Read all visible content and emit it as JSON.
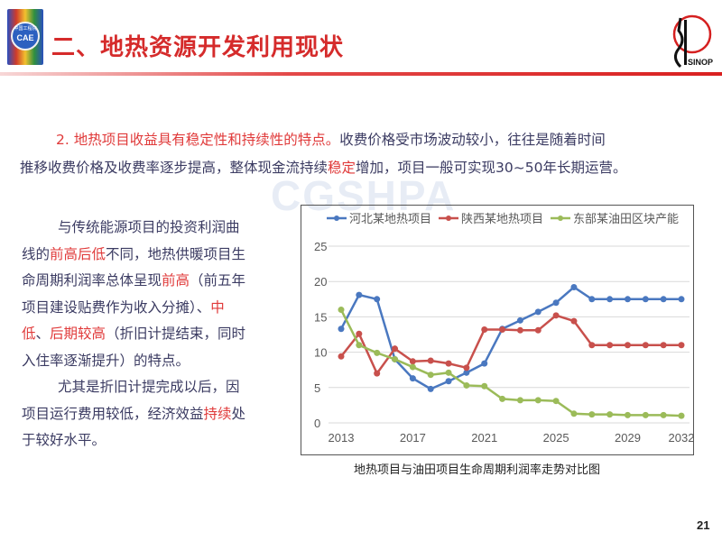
{
  "header": {
    "title": "二、地热资源开发利用现状",
    "logo_left_text": "CAE",
    "logo_left_cn": "中国工程院",
    "logo_right_text": "SINOPEC"
  },
  "watermark": "CGSHPA",
  "intro": {
    "line1_red": "2. 地热项目收益具有稳定性和持续性的特点。",
    "line1_rest": "收费价格受市场波动较小，往往是随着时间",
    "line2_a": "推移收费价格及收费率逐步提高，整体现金流持续",
    "line2_red": "稳定",
    "line2_b": "增加，项目一般可实现30~50年长期运营。"
  },
  "left_text": {
    "l1": "与传统能源项目的投资利润曲",
    "l2_a": "线的",
    "l2_red": "前高后低",
    "l2_b": "不同，地热供暖项目生",
    "l3_a": "命周期利润率总体呈现",
    "l3_red": "前高",
    "l3_b": "（前五年",
    "l4_a": "项目建设贴费作为收入分摊）、",
    "l4_red": "中",
    "l5_red1": "低",
    "l5_a": "、",
    "l5_red2": "后期较高",
    "l5_b": "（折旧计提结束，同时",
    "l6": "入住率逐渐提升）的特点。",
    "l7": "尤其是折旧计提完成以后，因",
    "l8_a": "项目运行费用较低，经济效益",
    "l8_red": "持续",
    "l8_b": "处",
    "l9": "于较好水平。"
  },
  "chart_data": {
    "type": "line",
    "title": "",
    "xlabel": "",
    "ylabel": "",
    "x": [
      2013,
      2014,
      2015,
      2016,
      2017,
      2018,
      2019,
      2020,
      2021,
      2022,
      2023,
      2024,
      2025,
      2026,
      2027,
      2028,
      2029,
      2030,
      2031,
      2032
    ],
    "x_ticks": [
      "2013",
      "2017",
      "2021",
      "2025",
      "2029",
      "2032"
    ],
    "y_ticks": [
      "0",
      "5",
      "10",
      "15",
      "20",
      "25"
    ],
    "ylim": [
      0,
      27
    ],
    "grid": true,
    "legend_position": "top",
    "series": [
      {
        "name": "河北某地热项目",
        "color": "#4a78c0",
        "values": [
          13.3,
          18.1,
          17.5,
          9.0,
          6.3,
          4.8,
          5.9,
          7.1,
          8.4,
          13.3,
          14.5,
          15.7,
          17.0,
          19.2,
          17.5,
          17.5,
          17.5,
          17.5,
          17.5,
          17.5
        ]
      },
      {
        "name": "陕西某地热项目",
        "color": "#c8504c",
        "values": [
          9.4,
          12.6,
          7.0,
          10.5,
          8.7,
          8.8,
          8.4,
          7.8,
          13.2,
          13.2,
          13.1,
          13.1,
          15.2,
          14.4,
          11.0,
          11.0,
          11.0,
          11.0,
          11.0,
          11.0
        ]
      },
      {
        "name": "东部某油田区块产能",
        "color": "#9bbb59",
        "values": [
          16.0,
          11.0,
          9.9,
          9.0,
          7.9,
          6.8,
          7.1,
          5.3,
          5.2,
          3.4,
          3.2,
          3.2,
          3.1,
          1.3,
          1.2,
          1.2,
          1.1,
          1.1,
          1.1,
          1.0
        ]
      }
    ]
  },
  "caption": "地热项目与油田项目生命周期利润率走势对比图",
  "page_number": "21"
}
